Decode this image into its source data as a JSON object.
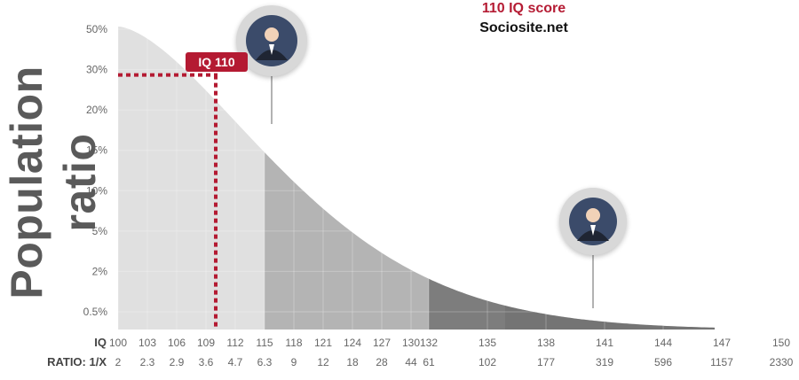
{
  "header": {
    "title": "110 IQ score",
    "site": "Sociosite.net"
  },
  "marker": {
    "label": "IQ 110"
  },
  "colors": {
    "accent": "#b41a32",
    "band_light": "#e0e0e0",
    "band_mid": "#b4b4b4",
    "band_dark": "#7d7d7d"
  },
  "pins": [
    {
      "name": "portrait-pin-1",
      "icon": "person-portrait-icon",
      "at_iq": 115
    },
    {
      "name": "portrait-pin-2",
      "icon": "person-portrait-icon",
      "at_iq": 140
    }
  ],
  "chart_data": {
    "type": "area",
    "ylabel": "Population ratio",
    "y_ticks": [
      "50%",
      "30%",
      "20%",
      "15%",
      "10%",
      "5%",
      "2%",
      "0.5%"
    ],
    "x_row_label": "IQ",
    "ratio_row_label": "RATIO: 1/X",
    "x": [
      100,
      103,
      106,
      109,
      112,
      115,
      118,
      121,
      124,
      127,
      130,
      132,
      135,
      138,
      141,
      144,
      147,
      150
    ],
    "ratio": [
      "2",
      "2.3",
      "2.9",
      "3.6",
      "4.7",
      "6.3",
      "9",
      "12",
      "18",
      "28",
      "44",
      "61",
      "102",
      "177",
      "319",
      "596",
      "1157",
      "2330"
    ],
    "highlight": {
      "iq": 110,
      "ratio_percent": 30
    },
    "bands": [
      {
        "from": 100,
        "to": 115,
        "shade": "light"
      },
      {
        "from": 115,
        "to": 132,
        "shade": "mid"
      },
      {
        "from": 132,
        "to": 150,
        "shade": "dark"
      }
    ],
    "grid": true
  }
}
